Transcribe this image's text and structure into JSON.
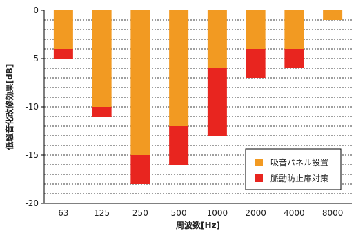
{
  "chart_data": {
    "type": "bar",
    "stacked": true,
    "categories": [
      "63",
      "125",
      "250",
      "500",
      "1000",
      "2000",
      "4000",
      "8000"
    ],
    "series": [
      {
        "name": "吸音パネル設置",
        "color": "#f29a22",
        "values": [
          -4,
          -10,
          -15,
          -12,
          -6,
          -4,
          -4,
          -1
        ]
      },
      {
        "name": "脈動防止扉対策",
        "color": "#e8251f",
        "values": [
          -1,
          -1,
          -3,
          -4,
          -7,
          -3,
          -2,
          0
        ]
      }
    ],
    "xlabel": "周波数[Hz]",
    "ylabel": "低騒音化改修効果[dB]",
    "ylim": [
      -20,
      0
    ],
    "yticks": [
      "0",
      "-5",
      "-10",
      "-15",
      "-20"
    ],
    "ytick_values": [
      0,
      -5,
      -10,
      -15,
      -20
    ],
    "grid": true,
    "legend_position": "bottom-right"
  }
}
